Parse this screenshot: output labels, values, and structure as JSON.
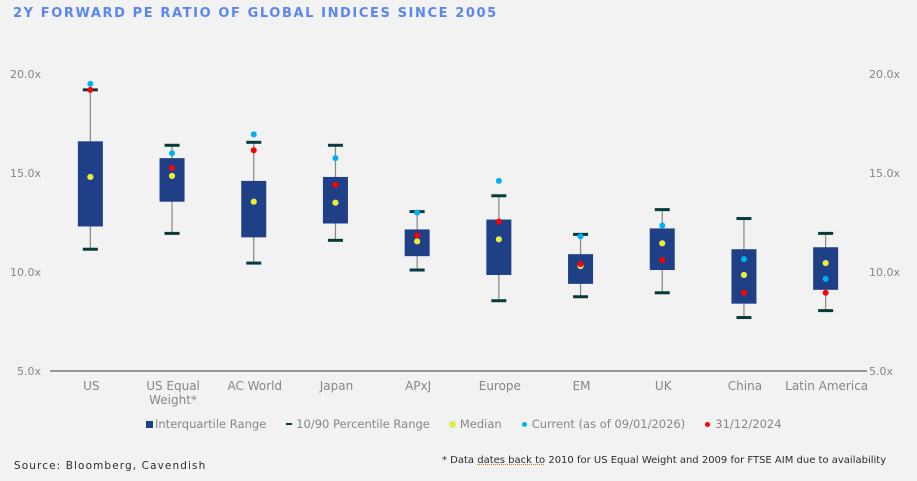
{
  "title": "2Y FORWARD PE RATIO OF GLOBAL INDICES SINCE 2005",
  "legend": {
    "iqr": "Interquartile Range",
    "percentile": "10/90 Percentile Range",
    "median": "Median",
    "current": "Current (as of 09/01/2026)",
    "prior": "31/12/2024"
  },
  "source": "Source: Bloomberg, Cavendish",
  "footnote": {
    "prefix": "* Data ",
    "underlined": "dates back to",
    "suffix": " 2010 for US Equal Weight and 2009 for FTSE AIM due to availability"
  },
  "colors": {
    "box": "#1f3f87",
    "whisker_cap": "#063b3b",
    "whisker_line": "#8c8480",
    "median": "#f2f20a",
    "current": "#00b0f0",
    "prior": "#ff0000",
    "title": "#5b86f0"
  },
  "chart_data": {
    "type": "box",
    "title": "2Y FORWARD PE RATIO OF GLOBAL INDICES SINCE 2005",
    "ylim": [
      5,
      20
    ],
    "yticks": [
      "5.0x",
      "10.0x",
      "15.0x",
      "20.0x"
    ],
    "ytick_values": [
      5,
      10,
      15,
      20
    ],
    "y_axis_both_sides": true,
    "grid": false,
    "legend_position": "bottom",
    "categories": [
      {
        "label": [
          "US"
        ],
        "p10": 11.15,
        "q1": 12.3,
        "median": 14.8,
        "q3": 16.6,
        "p90": 19.2,
        "current": 19.5,
        "prior": 19.2
      },
      {
        "label": [
          "US Equal",
          "Weight*"
        ],
        "p10": 11.95,
        "q1": 13.55,
        "median": 14.85,
        "q3": 15.75,
        "p90": 16.4,
        "current": 16.0,
        "prior": 15.25
      },
      {
        "label": [
          "AC World"
        ],
        "p10": 10.45,
        "q1": 11.75,
        "median": 13.55,
        "q3": 14.6,
        "p90": 16.55,
        "current": 16.95,
        "prior": 16.15
      },
      {
        "label": [
          "Japan"
        ],
        "p10": 11.6,
        "q1": 12.45,
        "median": 13.5,
        "q3": 14.8,
        "p90": 16.4,
        "current": 15.75,
        "prior": 14.4
      },
      {
        "label": [
          "APxJ"
        ],
        "p10": 10.1,
        "q1": 10.8,
        "median": 11.55,
        "q3": 12.15,
        "p90": 13.05,
        "current": 13.0,
        "prior": 11.85
      },
      {
        "label": [
          "Europe"
        ],
        "p10": 8.55,
        "q1": 9.85,
        "median": 11.65,
        "q3": 12.65,
        "p90": 13.85,
        "current": 14.6,
        "prior": 12.55
      },
      {
        "label": [
          "EM"
        ],
        "p10": 8.75,
        "q1": 9.4,
        "median": 10.3,
        "q3": 10.9,
        "p90": 11.9,
        "current": 11.8,
        "prior": 10.4
      },
      {
        "label": [
          "UK"
        ],
        "p10": 8.95,
        "q1": 10.1,
        "median": 11.45,
        "q3": 12.2,
        "p90": 13.15,
        "current": 12.35,
        "prior": 10.6
      },
      {
        "label": [
          "China"
        ],
        "p10": 7.7,
        "q1": 8.4,
        "median": 9.85,
        "q3": 11.15,
        "p90": 12.7,
        "current": 10.65,
        "prior": 8.95
      },
      {
        "label": [
          "Latin America"
        ],
        "p10": 8.05,
        "q1": 9.1,
        "median": 10.45,
        "q3": 11.25,
        "p90": 11.95,
        "current": 9.65,
        "prior": 8.95
      }
    ],
    "series": [
      {
        "name": "Interquartile Range",
        "kind": "box"
      },
      {
        "name": "10/90 Percentile Range",
        "kind": "whisker"
      },
      {
        "name": "Median",
        "kind": "marker"
      },
      {
        "name": "Current (as of 09/01/2026)",
        "kind": "marker"
      },
      {
        "name": "31/12/2024",
        "kind": "marker"
      }
    ]
  }
}
